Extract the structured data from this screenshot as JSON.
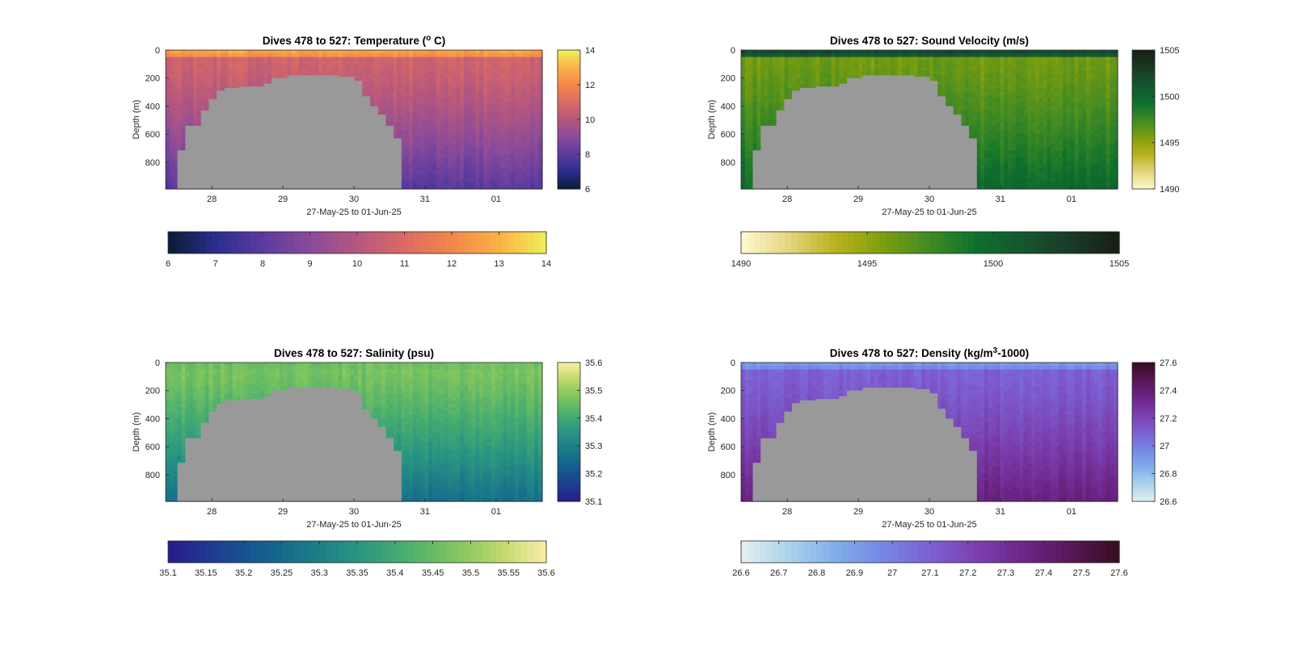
{
  "figure": {
    "background": "#ffffff",
    "mask_color": "#999999"
  },
  "chart_data": [
    {
      "type": "heatmap",
      "id": "temperature",
      "title": "Dives 478 to 527: Temperature (",
      "title_sup": "o",
      "title_end": " C)",
      "xlabel": "27-May-25 to 01-Jun-25",
      "ylabel": "Depth (m)",
      "x_ticks": [
        "28",
        "29",
        "30",
        "31",
        "01"
      ],
      "x_tick_values": [
        28,
        29,
        30,
        31,
        32
      ],
      "xlim": [
        27.35,
        32.65
      ],
      "y_ticks": [
        "0",
        "200",
        "400",
        "600",
        "800"
      ],
      "y_tick_values": [
        0,
        200,
        400,
        600,
        800
      ],
      "ylim": [
        0,
        990
      ],
      "colormap": "thermal",
      "colors": [
        "#0a1b33",
        "#2a2d8c",
        "#5b3b9e",
        "#8a4a9a",
        "#b4577f",
        "#da6a64",
        "#f3874a",
        "#f9b146",
        "#eef05a"
      ],
      "clim": [
        6,
        14
      ],
      "side_colorbar_ticks": [
        "6",
        "8",
        "10",
        "12",
        "14"
      ],
      "bottom_colorbar_ticks": [
        "6",
        "7",
        "8",
        "9",
        "10",
        "11",
        "12",
        "13",
        "14"
      ],
      "surface_value": 12.8,
      "mid_value": 10.7,
      "deep_value": 7.9,
      "thermocline_depth": 60
    },
    {
      "type": "heatmap",
      "id": "sound-velocity",
      "title": "Dives 478 to 527: Sound Velocity (m/s)",
      "xlabel": "27-May-25 to 01-Jun-25",
      "ylabel": "Depth (m)",
      "x_ticks": [
        "28",
        "29",
        "30",
        "31",
        "01"
      ],
      "x_tick_values": [
        28,
        29,
        30,
        31,
        32
      ],
      "xlim": [
        27.35,
        32.65
      ],
      "y_ticks": [
        "0",
        "200",
        "400",
        "600",
        "800"
      ],
      "y_tick_values": [
        0,
        200,
        400,
        600,
        800
      ],
      "ylim": [
        0,
        990
      ],
      "colormap": "speed",
      "colors": [
        "#fdf9d0",
        "#e4d580",
        "#b9b21d",
        "#7f9e0f",
        "#3f8a24",
        "#0d6f2d",
        "#165530",
        "#1a3a24",
        "#171f14"
      ],
      "clim": [
        1490,
        1505
      ],
      "side_colorbar_ticks": [
        "1490",
        "1495",
        "1500",
        "1505"
      ],
      "bottom_colorbar_ticks": [
        "1490",
        "1495",
        "1500",
        "1505"
      ],
      "surface_value": 1502.5,
      "mid_value": 1496.0,
      "deep_value": 1499.8,
      "thermocline_depth": 60
    },
    {
      "type": "heatmap",
      "id": "salinity",
      "title": "Dives 478 to 527: Salinity (psu)",
      "xlabel": "27-May-25 to 01-Jun-25",
      "ylabel": "Depth (m)",
      "x_ticks": [
        "28",
        "29",
        "30",
        "31",
        "01"
      ],
      "x_tick_values": [
        28,
        29,
        30,
        31,
        32
      ],
      "xlim": [
        27.35,
        32.65
      ],
      "y_ticks": [
        "0",
        "200",
        "400",
        "600",
        "800"
      ],
      "y_tick_values": [
        0,
        200,
        400,
        600,
        800
      ],
      "ylim": [
        0,
        990
      ],
      "colormap": "haline",
      "colors": [
        "#2a1a8c",
        "#1d3f91",
        "#145e8e",
        "#1b7a88",
        "#2a9482",
        "#48ad6f",
        "#7cc45e",
        "#bbd769",
        "#fbefa5"
      ],
      "clim": [
        35.1,
        35.6
      ],
      "side_colorbar_ticks": [
        "35.1",
        "35.2",
        "35.3",
        "35.4",
        "35.5",
        "35.6"
      ],
      "bottom_colorbar_ticks": [
        "35.1",
        "35.15",
        "35.2",
        "35.25",
        "35.3",
        "35.35",
        "35.4",
        "35.45",
        "35.5",
        "35.55",
        "35.6"
      ],
      "surface_value": 35.46,
      "mid_value": 35.47,
      "deep_value": 35.26,
      "thermocline_depth": 60
    },
    {
      "type": "heatmap",
      "id": "density",
      "title": "Dives 478 to 527: Density (kg/m",
      "title_sup": "3",
      "title_end": "-1000)",
      "xlabel": "27-May-25 to 01-Jun-25",
      "ylabel": "Depth (m)",
      "x_ticks": [
        "28",
        "29",
        "30",
        "31",
        "01"
      ],
      "x_tick_values": [
        28,
        29,
        30,
        31,
        32
      ],
      "xlim": [
        27.35,
        32.65
      ],
      "y_ticks": [
        "0",
        "200",
        "400",
        "600",
        "800"
      ],
      "y_tick_values": [
        0,
        200,
        400,
        600,
        800
      ],
      "ylim": [
        0,
        990
      ],
      "colormap": "dense",
      "colors": [
        "#e6f1f1",
        "#acd3ec",
        "#80aeea",
        "#7687e3",
        "#7c60d2",
        "#7b40b0",
        "#6c2586",
        "#561757",
        "#360d1f"
      ],
      "clim": [
        26.6,
        27.6
      ],
      "side_colorbar_ticks": [
        "26.6",
        "26.8",
        "27",
        "27.2",
        "27.4",
        "27.6"
      ],
      "bottom_colorbar_ticks": [
        "26.6",
        "26.7",
        "26.8",
        "26.9",
        "27",
        "27.1",
        "27.2",
        "27.3",
        "27.4",
        "27.5",
        "27.6"
      ],
      "surface_value": 26.92,
      "mid_value": 27.1,
      "deep_value": 27.38,
      "thermocline_depth": 60
    }
  ],
  "mask": {
    "start_day": 27.53,
    "end_day": 30.64,
    "bottom_depth": 990,
    "steps": [
      {
        "day": 27.53,
        "depth": 715
      },
      {
        "day": 27.64,
        "depth": 540
      },
      {
        "day": 27.86,
        "depth": 430
      },
      {
        "day": 27.97,
        "depth": 350
      },
      {
        "day": 28.08,
        "depth": 290
      },
      {
        "day": 28.19,
        "depth": 270
      },
      {
        "day": 28.41,
        "depth": 260
      },
      {
        "day": 28.74,
        "depth": 240
      },
      {
        "day": 28.84,
        "depth": 200
      },
      {
        "day": 29.06,
        "depth": 180
      },
      {
        "day": 29.8,
        "depth": 190
      },
      {
        "day": 30.02,
        "depth": 220
      },
      {
        "day": 30.13,
        "depth": 330
      },
      {
        "day": 30.24,
        "depth": 400
      },
      {
        "day": 30.34,
        "depth": 460
      },
      {
        "day": 30.45,
        "depth": 540
      },
      {
        "day": 30.56,
        "depth": 630
      }
    ]
  }
}
